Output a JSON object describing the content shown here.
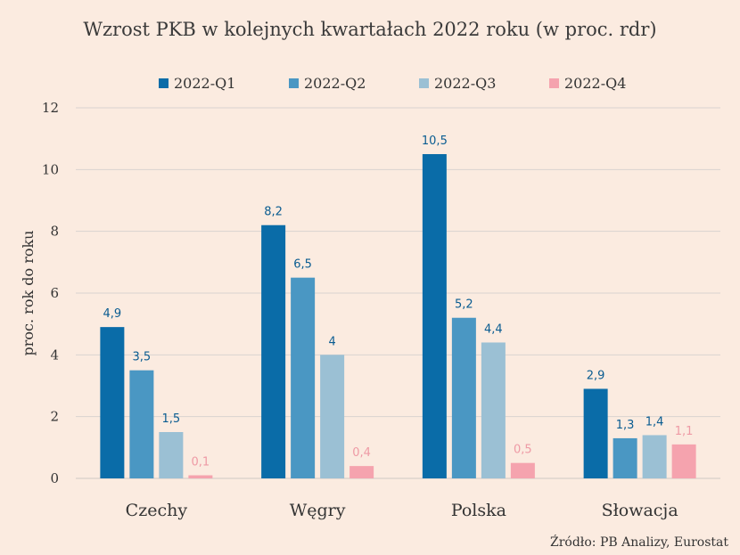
{
  "chart_data": {
    "type": "bar",
    "title": "Wzrost PKB w kolejnych kwartałach 2022 roku (w proc. rdr)",
    "ylabel": "proc. rok do roku",
    "xlabel": "",
    "ylim": [
      0,
      12
    ],
    "yticks": [
      "0",
      "2",
      "4",
      "6",
      "8",
      "10",
      "12"
    ],
    "grid": true,
    "legend_position": "top",
    "categories": [
      "Czechy",
      "Węgry",
      "Polska",
      "Słowacja"
    ],
    "series": [
      {
        "name": "2022-Q1",
        "color": "#0A6CA8",
        "label_color": "#0A5C91",
        "values": [
          4.9,
          8.2,
          10.5,
          2.9
        ],
        "labels": [
          "4,9",
          "8,2",
          "10,5",
          "2,9"
        ]
      },
      {
        "name": "2022-Q2",
        "color": "#4A97C3",
        "label_color": "#0A5C91",
        "values": [
          3.5,
          6.5,
          5.2,
          1.3
        ],
        "labels": [
          "3,5",
          "6,5",
          "5,2",
          "1,3"
        ]
      },
      {
        "name": "2022-Q3",
        "color": "#9BC0D4",
        "label_color": "#0A5C91",
        "values": [
          1.5,
          4.0,
          4.4,
          1.4
        ],
        "labels": [
          "1,5",
          "4",
          "4,4",
          "1,4"
        ]
      },
      {
        "name": "2022-Q4",
        "color": "#F5A3AE",
        "label_color": "#EE9AA5",
        "values": [
          0.1,
          0.4,
          0.5,
          1.1
        ],
        "labels": [
          "0,1",
          "0,4",
          "0,5",
          "1,1"
        ]
      }
    ],
    "source": "Źródło: PB Analizy, Eurostat"
  }
}
